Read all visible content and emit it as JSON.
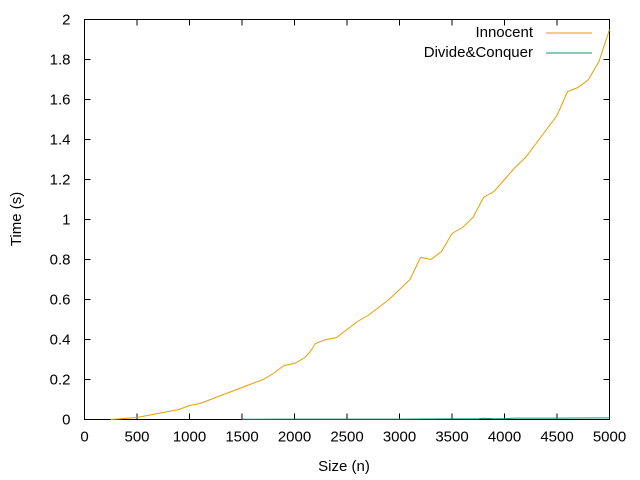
{
  "chart_data": {
    "type": "line",
    "title": "",
    "xlabel": "Size (n)",
    "ylabel": "Time (s)",
    "xlim": [
      0,
      5000
    ],
    "ylim": [
      0,
      2
    ],
    "xticks": [
      0,
      500,
      1000,
      1500,
      2000,
      2500,
      3000,
      3500,
      4000,
      4500,
      5000
    ],
    "yticks": [
      0,
      0.2,
      0.4,
      0.6,
      0.8,
      1,
      1.2,
      1.4,
      1.6,
      1.8,
      2
    ],
    "xtick_labels": [
      "0",
      "500",
      "1000",
      "1500",
      "2000",
      "2500",
      "3000",
      "3500",
      "4000",
      "4500",
      "5000"
    ],
    "ytick_labels": [
      "0",
      "0.2",
      "0.4",
      "0.6",
      "0.8",
      "1",
      "1.2",
      "1.4",
      "1.6",
      "1.8",
      "2"
    ],
    "grid": false,
    "legend_position": "top-right",
    "series": [
      {
        "name": "Innocent",
        "color": "#e69f00",
        "x": [
          250,
          500,
          600,
          700,
          800,
          900,
          1000,
          1100,
          1200,
          1300,
          1400,
          1500,
          1600,
          1700,
          1800,
          1900,
          2000,
          2100,
          2150,
          2200,
          2300,
          2400,
          2500,
          2600,
          2700,
          2800,
          2900,
          3000,
          3100,
          3200,
          3300,
          3400,
          3500,
          3600,
          3700,
          3800,
          3900,
          4000,
          4100,
          4200,
          4300,
          4400,
          4500,
          4550,
          4600,
          4700,
          4800,
          4900,
          5000
        ],
        "y": [
          0.0,
          0.01,
          0.02,
          0.03,
          0.04,
          0.05,
          0.07,
          0.08,
          0.1,
          0.12,
          0.14,
          0.16,
          0.18,
          0.2,
          0.23,
          0.27,
          0.28,
          0.31,
          0.34,
          0.38,
          0.4,
          0.41,
          0.45,
          0.49,
          0.52,
          0.56,
          0.6,
          0.65,
          0.7,
          0.81,
          0.8,
          0.84,
          0.93,
          0.96,
          1.01,
          1.11,
          1.14,
          1.2,
          1.26,
          1.31,
          1.38,
          1.45,
          1.52,
          1.58,
          1.64,
          1.66,
          1.7,
          1.79,
          1.95
        ]
      },
      {
        "name": "Divide&Conquer",
        "color": "#009e73",
        "x": [
          1500,
          2000,
          2500,
          3000,
          3500,
          3750,
          3800,
          3900,
          4000,
          4100,
          4500,
          5000
        ],
        "y": [
          0.001,
          0.002,
          0.002,
          0.002,
          0.003,
          0.003,
          0.006,
          0.004,
          0.004,
          0.007,
          0.007,
          0.008
        ]
      }
    ]
  }
}
